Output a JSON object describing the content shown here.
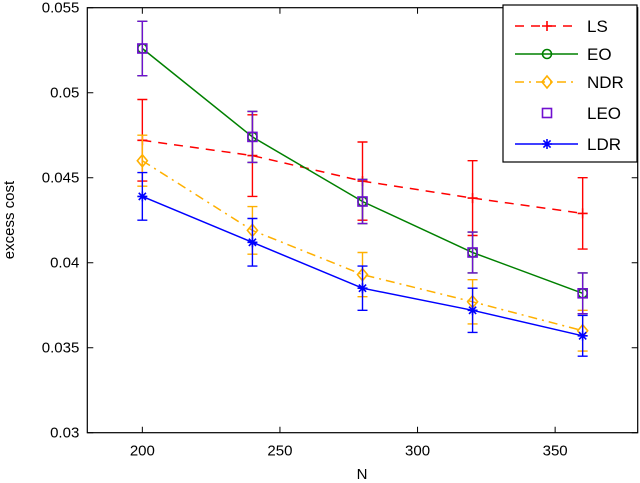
{
  "chart_data": {
    "type": "line",
    "title": "",
    "xlabel": "N",
    "ylabel": "excess cost",
    "xlim": [
      180,
      380
    ],
    "ylim": [
      0.03,
      0.055
    ],
    "xticks": [
      200,
      250,
      300,
      350
    ],
    "xtick_labels": [
      "200",
      "250",
      "300",
      "350"
    ],
    "yticks": [
      0.03,
      0.035,
      0.04,
      0.045,
      0.05,
      0.055
    ],
    "ytick_labels": [
      "0.03",
      "0.035",
      "0.04",
      "0.045",
      "0.05",
      "0.055"
    ],
    "grid": false,
    "legend_position": "top-right",
    "x": [
      200,
      240,
      280,
      320,
      360
    ],
    "series": [
      {
        "name": "LS",
        "color": "#ff0000",
        "dash": "dashed",
        "marker": "plus",
        "values": [
          0.0472,
          0.0463,
          0.0448,
          0.0438,
          0.0429
        ],
        "errors": [
          0.0024,
          0.0024,
          0.0023,
          0.0022,
          0.0021
        ]
      },
      {
        "name": "EO",
        "color": "#008000",
        "dash": "solid",
        "marker": "circle",
        "values": [
          0.0526,
          0.0474,
          0.0436,
          0.0406,
          0.0382
        ],
        "errors": [
          0.0016,
          0.0015,
          0.0013,
          0.0012,
          0.0012
        ]
      },
      {
        "name": "NDR",
        "color": "#ffb000",
        "dash": "dashdot",
        "marker": "diamond",
        "values": [
          0.046,
          0.0419,
          0.0393,
          0.0377,
          0.036
        ],
        "errors": [
          0.0015,
          0.0014,
          0.0013,
          0.0013,
          0.0012
        ]
      },
      {
        "name": "LEO",
        "color": "#7010d0",
        "dash": "none",
        "marker": "square",
        "values": [
          0.0526,
          0.0474,
          0.0436,
          0.0406,
          0.0382
        ],
        "errors": [
          0.0016,
          0.0015,
          0.0013,
          0.0012,
          0.0012
        ]
      },
      {
        "name": "LDR",
        "color": "#0000ff",
        "dash": "solid",
        "marker": "star",
        "values": [
          0.0439,
          0.0412,
          0.0385,
          0.0372,
          0.0357
        ],
        "errors": [
          0.0014,
          0.0014,
          0.0013,
          0.0013,
          0.0012
        ]
      }
    ]
  }
}
